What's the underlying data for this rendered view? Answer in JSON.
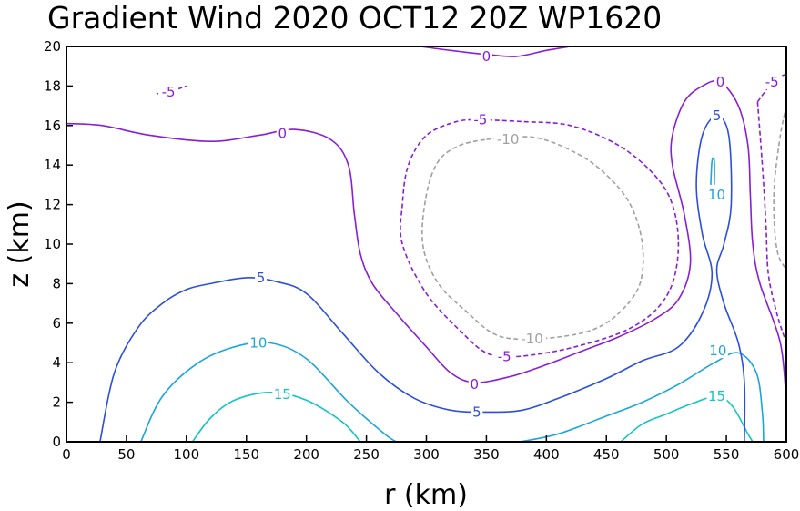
{
  "chart_data": {
    "type": "contour",
    "title": "Gradient Wind 2020 OCT12 20Z   WP1620",
    "xlabel": "r (km)",
    "ylabel": "z (km)",
    "xlim": [
      0,
      600
    ],
    "ylim": [
      0,
      20
    ],
    "x_ticks": [
      0,
      50,
      100,
      150,
      200,
      250,
      300,
      350,
      400,
      450,
      500,
      550,
      600
    ],
    "y_ticks": [
      0,
      2,
      4,
      6,
      8,
      10,
      12,
      14,
      16,
      18,
      20
    ],
    "contours": [
      {
        "level": 15,
        "label": "15",
        "color": "#12c4c4",
        "dashed": false,
        "points": [
          [
            105,
            0
          ],
          [
            120,
            1.2
          ],
          [
            140,
            2.1
          ],
          [
            170,
            2.5
          ],
          [
            200,
            2.1
          ],
          [
            230,
            1
          ],
          [
            245,
            0
          ]
        ]
      },
      {
        "level": 15,
        "label": "15",
        "color": "#12c4c4",
        "dashed": false,
        "points": [
          [
            462,
            0
          ],
          [
            480,
            0.9
          ],
          [
            500,
            1.4
          ],
          [
            520,
            1.9
          ],
          [
            542,
            2.3
          ],
          [
            555,
            1.8
          ],
          [
            568,
            0.4
          ],
          [
            572,
            0
          ]
        ]
      },
      {
        "level": 10,
        "label": "10",
        "color": "#1aa5dd",
        "dashed": false,
        "points": [
          [
            62,
            0
          ],
          [
            80,
            2.3
          ],
          [
            110,
            4
          ],
          [
            140,
            4.8
          ],
          [
            170,
            5
          ],
          [
            200,
            4.2
          ],
          [
            235,
            2
          ],
          [
            265,
            0.4
          ],
          [
            275,
            0
          ]
        ]
      },
      {
        "level": 10,
        "label": "10",
        "color": "#1aa5dd",
        "dashed": false,
        "points": [
          [
            378,
            0
          ],
          [
            410,
            0.4
          ],
          [
            450,
            1.3
          ],
          [
            480,
            2
          ],
          [
            510,
            2.9
          ],
          [
            540,
            4
          ],
          [
            560,
            4.5
          ],
          [
            575,
            3.5
          ],
          [
            580,
            1.5
          ],
          [
            581,
            0
          ]
        ]
      },
      {
        "level": 10,
        "label": "10",
        "color": "#1aa5dd",
        "dashed": false,
        "points": [
          [
            537,
            13
          ],
          [
            538,
            14.2
          ],
          [
            540,
            14.2
          ],
          [
            540,
            13
          ]
        ]
      },
      {
        "level": 5,
        "label": "5",
        "color": "#2b4fd9",
        "dashed": false,
        "points": [
          [
            28,
            0
          ],
          [
            40,
            3.5
          ],
          [
            60,
            5.8
          ],
          [
            80,
            7
          ],
          [
            100,
            7.7
          ],
          [
            120,
            8
          ],
          [
            150,
            8.3
          ],
          [
            175,
            8.1
          ],
          [
            200,
            7.5
          ],
          [
            230,
            5.5
          ],
          [
            260,
            3.5
          ],
          [
            290,
            2.2
          ],
          [
            320,
            1.6
          ],
          [
            350,
            1.5
          ],
          [
            380,
            1.6
          ],
          [
            410,
            2.2
          ],
          [
            450,
            3.2
          ],
          [
            480,
            4.1
          ],
          [
            510,
            4.8
          ],
          [
            530,
            6.5
          ],
          [
            538,
            8.5
          ],
          [
            530,
            10.5
          ],
          [
            525,
            13
          ],
          [
            530,
            15.5
          ],
          [
            542,
            16.5
          ],
          [
            552,
            15.5
          ],
          [
            554,
            12
          ],
          [
            548,
            10
          ],
          [
            542,
            8.7
          ],
          [
            548,
            7
          ],
          [
            560,
            5
          ],
          [
            565,
            3
          ],
          [
            565,
            0
          ]
        ]
      },
      {
        "level": 0,
        "label": "0",
        "color": "#8a1ed4",
        "dashed": false,
        "points": [
          [
            0,
            16.1
          ],
          [
            30,
            16
          ],
          [
            70,
            15.5
          ],
          [
            120,
            15.2
          ],
          [
            160,
            15.5
          ],
          [
            190,
            15.8
          ],
          [
            220,
            15.3
          ],
          [
            235,
            14
          ],
          [
            240,
            11.5
          ],
          [
            245,
            9.5
          ],
          [
            255,
            8
          ],
          [
            275,
            6.5
          ],
          [
            300,
            4.8
          ],
          [
            320,
            3.5
          ],
          [
            340,
            3
          ],
          [
            370,
            3.3
          ],
          [
            400,
            3.9
          ],
          [
            430,
            4.6
          ],
          [
            460,
            5.3
          ],
          [
            490,
            6.2
          ],
          [
            510,
            7.2
          ],
          [
            520,
            9
          ],
          [
            515,
            11.5
          ],
          [
            505,
            14
          ],
          [
            505,
            15.5
          ],
          [
            515,
            17.2
          ],
          [
            530,
            18
          ],
          [
            545,
            18.2
          ],
          [
            560,
            17
          ],
          [
            568,
            15
          ],
          [
            570,
            12.5
          ],
          [
            572,
            10
          ],
          [
            578,
            8
          ],
          [
            595,
            5
          ],
          [
            600,
            2
          ]
        ]
      },
      {
        "level": 0,
        "label": "0",
        "color": "#8a1ed4",
        "dashed": false,
        "points": [
          [
            295,
            20
          ],
          [
            320,
            19.8
          ],
          [
            350,
            19.6
          ],
          [
            375,
            19.5
          ],
          [
            400,
            19.8
          ],
          [
            420,
            20
          ]
        ]
      },
      {
        "level": -5,
        "label": "-5",
        "color": "#8a1ed4",
        "dashed": true,
        "points": [
          [
            345,
            16.3
          ],
          [
            380,
            16.2
          ],
          [
            420,
            16
          ],
          [
            460,
            15
          ],
          [
            490,
            13.5
          ],
          [
            505,
            12
          ],
          [
            510,
            10
          ],
          [
            505,
            8
          ],
          [
            490,
            6.6
          ],
          [
            465,
            5.6
          ],
          [
            430,
            4.9
          ],
          [
            400,
            4.5
          ],
          [
            370,
            4.3
          ],
          [
            350,
            4.5
          ],
          [
            330,
            5.5
          ],
          [
            300,
            7.5
          ],
          [
            280,
            10
          ],
          [
            280,
            12
          ],
          [
            285,
            14
          ],
          [
            300,
            15.5
          ],
          [
            325,
            16.2
          ],
          [
            345,
            16.3
          ]
        ]
      },
      {
        "level": -5,
        "label": "-5",
        "color": "#8a1ed4",
        "dashed": true,
        "points": [
          [
            576,
            17.2
          ],
          [
            580,
            14
          ],
          [
            583,
            11
          ],
          [
            585,
            8.5
          ],
          [
            592,
            6.5
          ],
          [
            600,
            5
          ]
        ]
      },
      {
        "level": -5,
        "label": "-5",
        "color": "#8a1ed4",
        "dashed": true,
        "points": [
          [
            576,
            17.2
          ],
          [
            590,
            18.3
          ],
          [
            600,
            18.6
          ]
        ]
      },
      {
        "level": -5,
        "label": "-5",
        "color": "#8a1ed4",
        "dashed": true,
        "points": [
          [
            75,
            17.6
          ],
          [
            90,
            17.8
          ],
          [
            100,
            18
          ]
        ]
      },
      {
        "level": -10,
        "label": "-10",
        "color": "#a0a0a0",
        "dashed": true,
        "points": [
          [
            350,
            15.3
          ],
          [
            390,
            15.4
          ],
          [
            425,
            14.6
          ],
          [
            450,
            13.5
          ],
          [
            470,
            12
          ],
          [
            480,
            10
          ],
          [
            478,
            8
          ],
          [
            462,
            6.6
          ],
          [
            440,
            5.7
          ],
          [
            410,
            5.3
          ],
          [
            375,
            5.2
          ],
          [
            355,
            5.5
          ],
          [
            335,
            6.5
          ],
          [
            310,
            8
          ],
          [
            297,
            10
          ],
          [
            300,
            12.5
          ],
          [
            310,
            14.2
          ],
          [
            328,
            15
          ],
          [
            350,
            15.3
          ]
        ]
      },
      {
        "level": -10,
        "label": "-10",
        "color": "#a0a0a0",
        "dashed": true,
        "points": [
          [
            600,
            17
          ],
          [
            595,
            15.5
          ],
          [
            590,
            13
          ],
          [
            590,
            11
          ],
          [
            593,
            9.5
          ],
          [
            600,
            8.7
          ]
        ]
      }
    ],
    "contour_labels": [
      {
        "text": "0",
        "x": 350,
        "y": 19.5,
        "color": "#8a1ed4"
      },
      {
        "text": "0",
        "x": 180,
        "y": 15.6,
        "color": "#8a1ed4"
      },
      {
        "text": "0",
        "x": 340,
        "y": 2.9,
        "color": "#8a1ed4"
      },
      {
        "text": "0",
        "x": 545,
        "y": 18.2,
        "color": "#8a1ed4"
      },
      {
        "text": "-5",
        "x": 85,
        "y": 17.7,
        "color": "#8a1ed4"
      },
      {
        "text": "-5",
        "x": 345,
        "y": 16.3,
        "color": "#8a1ed4"
      },
      {
        "text": "-5",
        "x": 365,
        "y": 4.3,
        "color": "#8a1ed4"
      },
      {
        "text": "-5",
        "x": 588,
        "y": 18.2,
        "color": "#8a1ed4"
      },
      {
        "text": "-10",
        "x": 368,
        "y": 15.3,
        "color": "#a0a0a0"
      },
      {
        "text": "-10",
        "x": 388,
        "y": 5.2,
        "color": "#a0a0a0"
      },
      {
        "text": "5",
        "x": 162,
        "y": 8.3,
        "color": "#2b4fd9"
      },
      {
        "text": "5",
        "x": 342,
        "y": 1.5,
        "color": "#2b4fd9"
      },
      {
        "text": "5",
        "x": 542,
        "y": 16.5,
        "color": "#2b4fd9"
      },
      {
        "text": "10",
        "x": 160,
        "y": 5,
        "color": "#1aa5dd"
      },
      {
        "text": "10",
        "x": 542,
        "y": 12.5,
        "color": "#1aa5dd"
      },
      {
        "text": "10",
        "x": 543,
        "y": 4.6,
        "color": "#1aa5dd"
      },
      {
        "text": "15",
        "x": 180,
        "y": 2.4,
        "color": "#12c4c4"
      },
      {
        "text": "15",
        "x": 542,
        "y": 2.3,
        "color": "#12c4c4"
      }
    ]
  }
}
